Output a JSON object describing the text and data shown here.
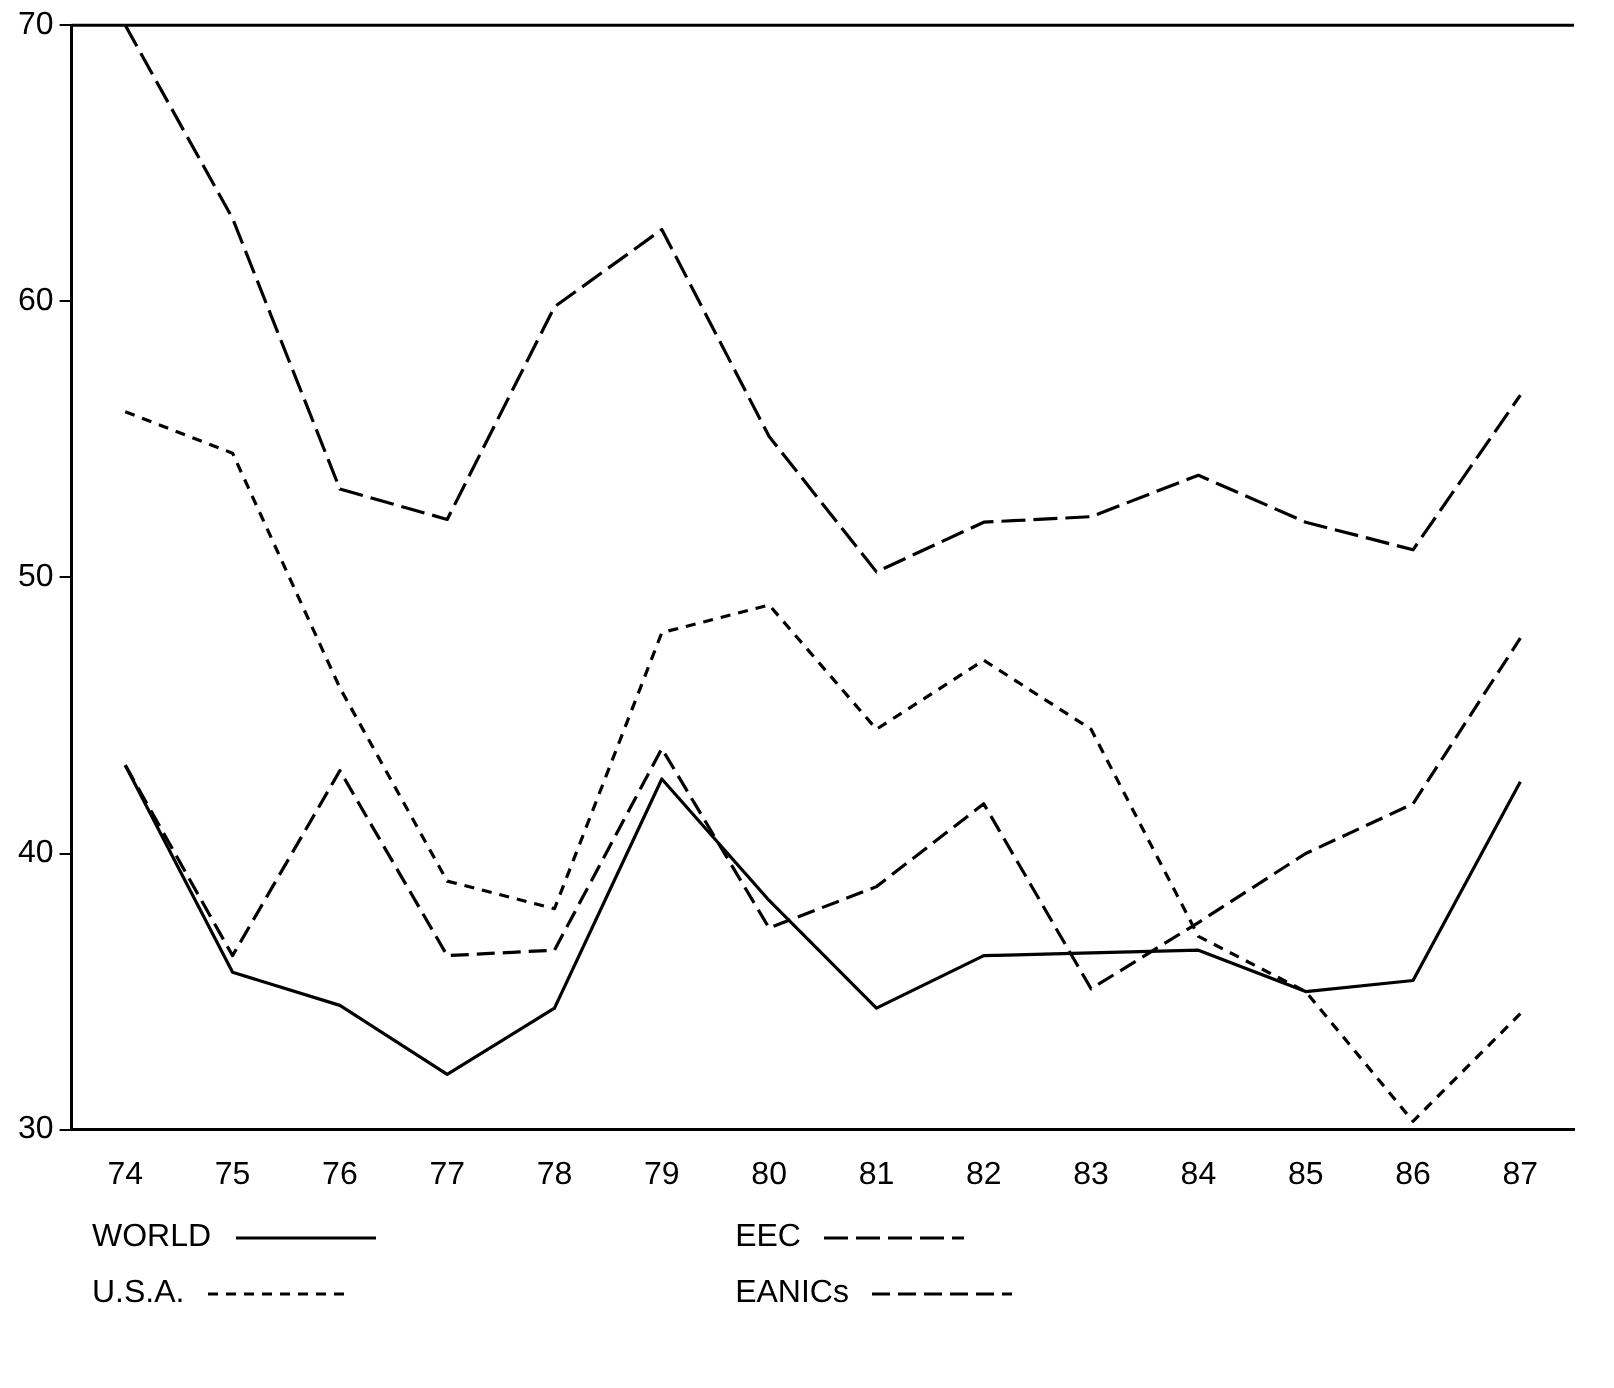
{
  "chart_data": {
    "type": "line",
    "categories": [
      "74",
      "75",
      "76",
      "77",
      "78",
      "79",
      "80",
      "81",
      "82",
      "83",
      "84",
      "85",
      "86",
      "87"
    ],
    "ylim": [
      30,
      70
    ],
    "yticks": [
      30,
      40,
      50,
      60,
      70
    ],
    "grid": false,
    "legend": "bottom",
    "marker": "none",
    "series": [
      {
        "name": "WORLD",
        "color": "#000000",
        "line_style": "solid",
        "values": [
          43.2,
          35.7,
          34.5,
          32.0,
          34.4,
          42.7,
          38.3,
          34.4,
          36.3,
          36.4,
          36.5,
          35.0,
          35.4,
          42.6
        ]
      },
      {
        "name": "EEC",
        "color": "#000000",
        "line_style": "dashed",
        "values": [
          70,
          63,
          53.2,
          52.1,
          59.8,
          62.6,
          55.1,
          50.2,
          52.0,
          52.2,
          53.7,
          52.0,
          51.0,
          56.6
        ]
      },
      {
        "name": "U.S.A.",
        "color": "#000000",
        "line_style": "dashed",
        "values": [
          56.0,
          54.5,
          46.0,
          39.0,
          38.0,
          48.0,
          49.0,
          44.5,
          47.0,
          44.5,
          37.0,
          35.0,
          30.3,
          34.2
        ]
      },
      {
        "name": "EANICs",
        "color": "#000000",
        "line_style": "dashed",
        "values": [
          43.2,
          36.3,
          43.0,
          36.3,
          36.5,
          43.8,
          37.3,
          38.8,
          41.8,
          35.1,
          37.5,
          40.0,
          41.8,
          47.8
        ]
      }
    ]
  }
}
